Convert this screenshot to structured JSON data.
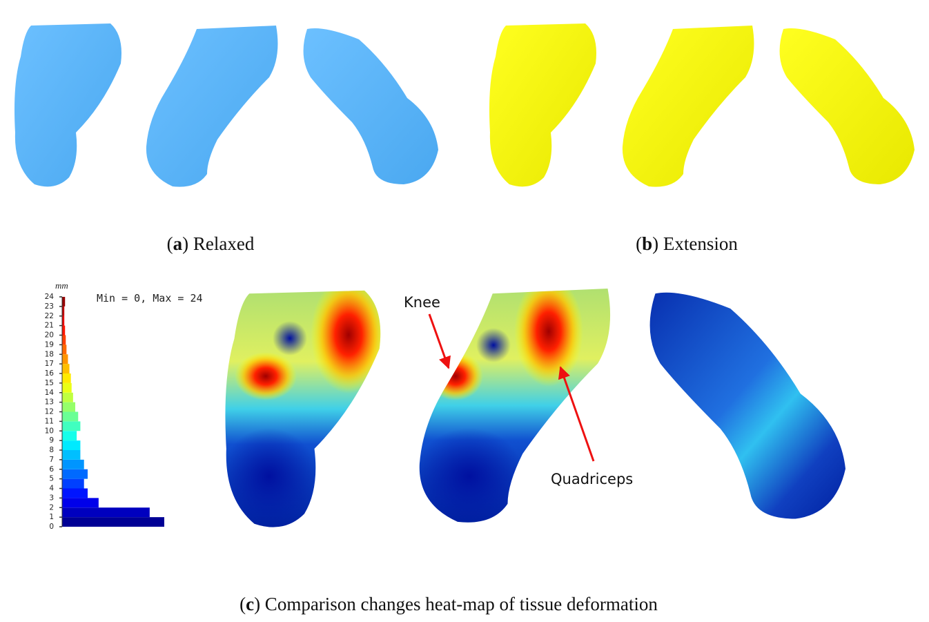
{
  "captions": [
    {
      "parts": [
        "(",
        "a",
        ") Relaxed"
      ]
    },
    {
      "parts": [
        "(",
        "b",
        ") Extension"
      ]
    },
    {
      "parts": [
        "(",
        "c",
        ") Comparison changes heat-map of tissue deformation"
      ]
    }
  ],
  "annotations": {
    "knee": "Knee",
    "quadriceps": "Quadriceps",
    "range": "Min = 0, Max = 24"
  },
  "histogram": {
    "type": "bar",
    "orientation": "horizontal",
    "unit": "mm",
    "bins": [
      0,
      1,
      2,
      3,
      4,
      5,
      6,
      7,
      8,
      9,
      10,
      11,
      12,
      13,
      14,
      15,
      16,
      17,
      18,
      19,
      20,
      21,
      22,
      23,
      24
    ],
    "counts": [
      140,
      120,
      50,
      35,
      30,
      35,
      30,
      25,
      25,
      20,
      25,
      22,
      18,
      15,
      13,
      12,
      10,
      8,
      6,
      5,
      4,
      3,
      3,
      4
    ],
    "ylim": [
      0,
      24
    ],
    "yticks": [
      0,
      1,
      2,
      3,
      4,
      5,
      6,
      7,
      8,
      9,
      10,
      11,
      12,
      13,
      14,
      15,
      16,
      17,
      18,
      19,
      20,
      21,
      22,
      23,
      24
    ],
    "colormap": "jet"
  }
}
